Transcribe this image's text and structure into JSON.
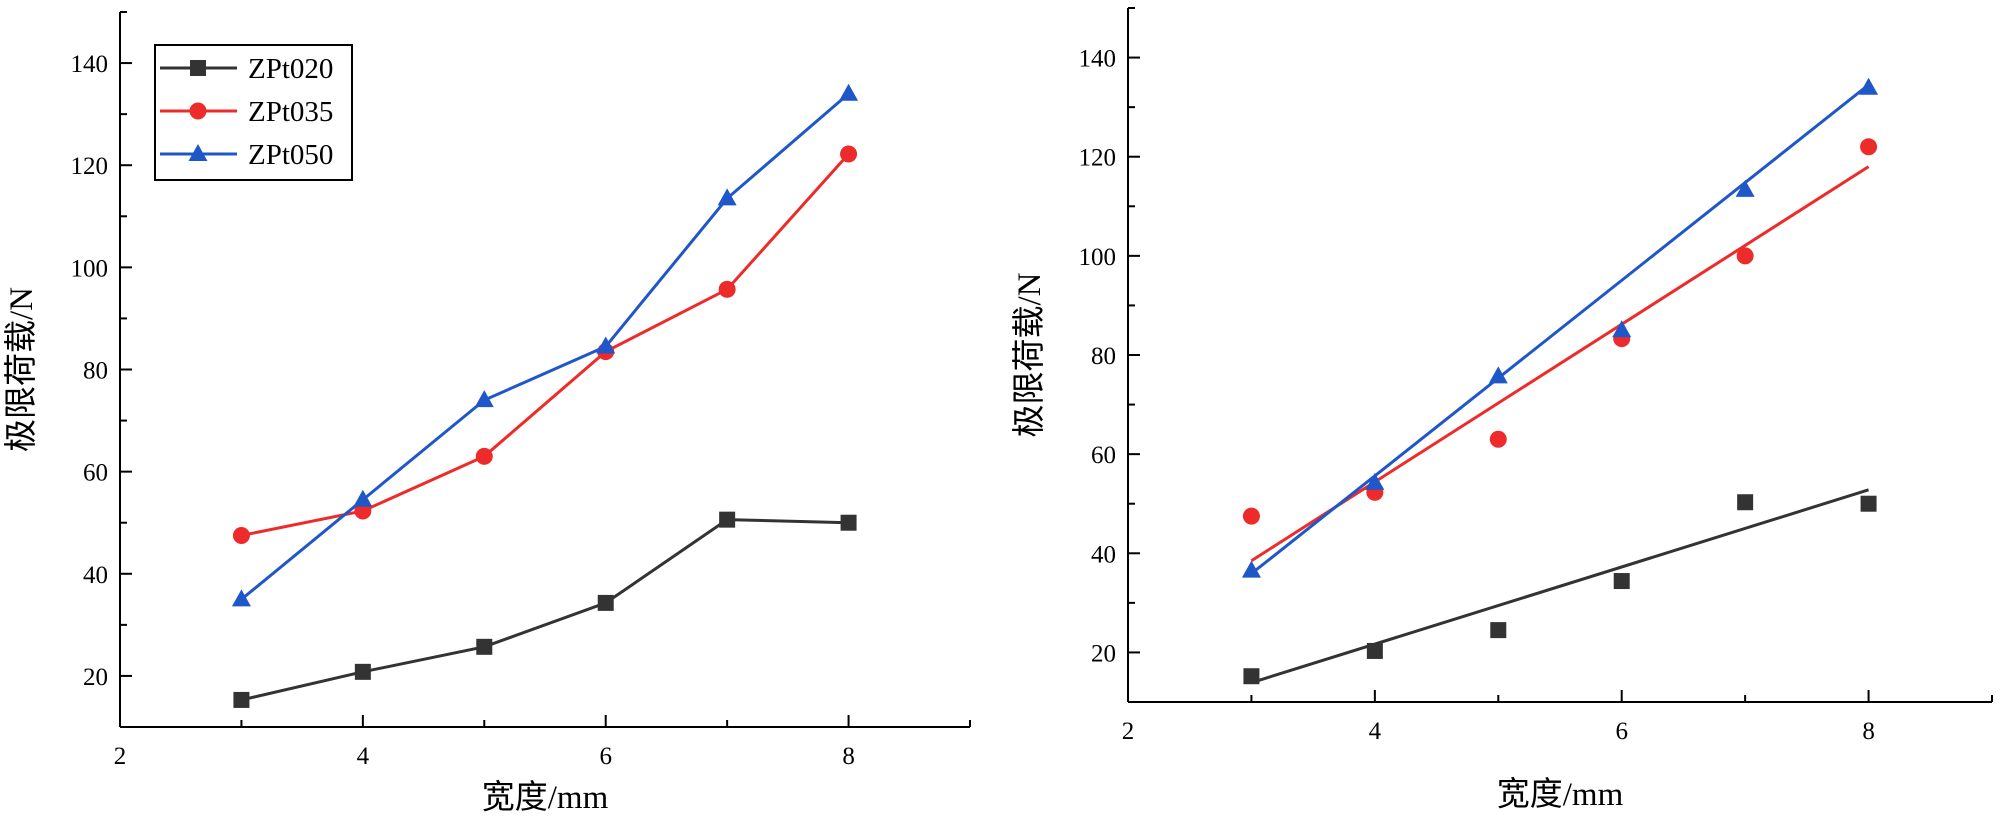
{
  "chart_data": [
    {
      "type": "line",
      "title": "",
      "xlabel": "宽度/mm",
      "ylabel": "极限荷载/N",
      "xlim": [
        2,
        9
      ],
      "ylim": [
        10,
        150
      ],
      "xticks": [
        2,
        4,
        6,
        8
      ],
      "yticks": [
        20,
        40,
        60,
        80,
        100,
        120,
        140
      ],
      "grid": false,
      "legend": "top-left",
      "x": [
        3,
        4,
        5,
        6,
        7,
        8
      ],
      "series": [
        {
          "name": "ZPt020",
          "color": "#333333",
          "marker": "square",
          "values": [
            15.3,
            20.8,
            25.7,
            34.3,
            50.6,
            50.0
          ]
        },
        {
          "name": "ZPt035",
          "color": "#ee2b2b",
          "marker": "circle",
          "values": [
            47.5,
            52.3,
            63.0,
            83.5,
            95.7,
            122.2
          ]
        },
        {
          "name": "ZPt050",
          "color": "#1f57c9",
          "marker": "triangle",
          "values": [
            35.0,
            54.5,
            74.0,
            84.5,
            113.5,
            134.0
          ]
        }
      ]
    },
    {
      "type": "scatter",
      "title": "",
      "xlabel": "宽度/mm",
      "ylabel": "极限荷载/N",
      "xlim": [
        2,
        9
      ],
      "ylim": [
        10,
        150
      ],
      "xticks": [
        2,
        4,
        6,
        8
      ],
      "yticks": [
        20,
        40,
        60,
        80,
        100,
        120,
        140
      ],
      "grid": false,
      "x": [
        3,
        4,
        5,
        6,
        7,
        8
      ],
      "series": [
        {
          "name": "ZPt020",
          "color": "#333333",
          "marker": "square",
          "values": [
            15.2,
            20.3,
            24.5,
            34.4,
            50.3,
            50.0
          ],
          "fit": [
            [
              3,
              13.9
            ],
            [
              8,
              52.8
            ]
          ]
        },
        {
          "name": "ZPt035",
          "color": "#ee2b2b",
          "marker": "circle",
          "values": [
            47.5,
            52.3,
            63.0,
            83.3,
            100.0,
            122.0
          ],
          "fit": [
            [
              3,
              38.5
            ],
            [
              8,
              118.0
            ]
          ]
        },
        {
          "name": "ZPt050",
          "color": "#1f57c9",
          "marker": "triangle",
          "values": [
            36.5,
            54.2,
            75.7,
            85.0,
            113.3,
            133.9
          ],
          "fit": [
            [
              3,
              35.9
            ],
            [
              8,
              134.5
            ]
          ]
        }
      ]
    }
  ]
}
